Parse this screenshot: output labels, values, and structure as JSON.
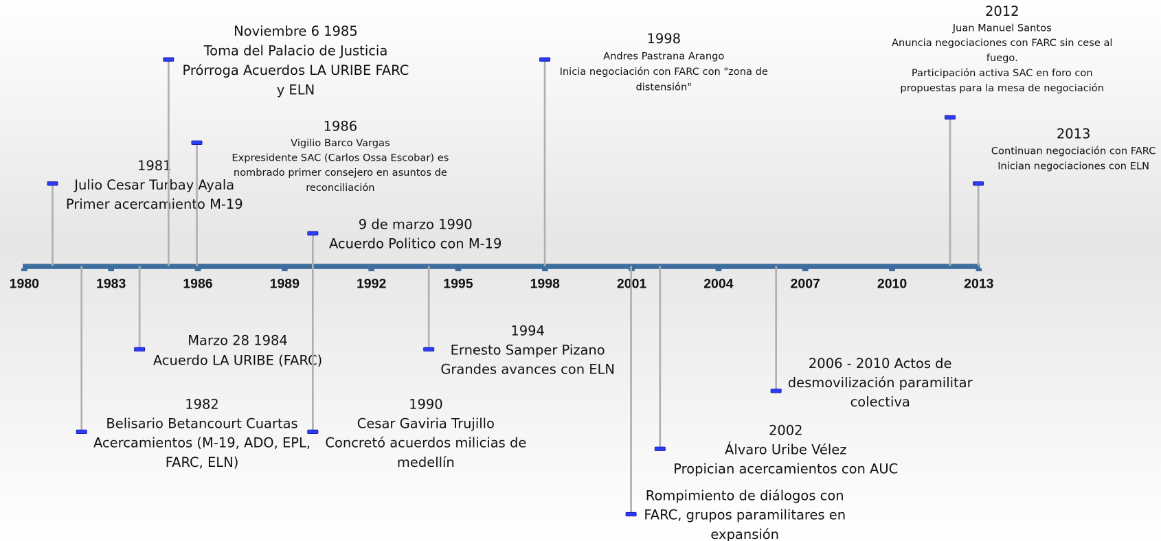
{
  "axis_labels": [
    "1980",
    "1983",
    "1986",
    "1989",
    "1992",
    "1995",
    "1998",
    "2001",
    "2004",
    "2007",
    "2010",
    "2013"
  ],
  "events": [
    {
      "lines": [
        "1981",
        "Julio Cesar Turbay Ayala",
        "Primer acercamiento M-19"
      ]
    },
    {
      "lines": [
        "1982",
        "Belisario Betancourt Cuartas",
        "Acercamientos (M-19, ADO, EPL,",
        "FARC, ELN)"
      ]
    },
    {
      "lines": [
        "Marzo 28 1984",
        "Acuerdo LA URIBE (FARC)"
      ]
    },
    {
      "lines": [
        "Noviembre 6 1985",
        "Toma del Palacio de Justicia",
        "Prórroga Acuerdos LA URIBE FARC",
        "y ELN"
      ]
    },
    {
      "lines": [
        "1986",
        "Vigilio Barco Vargas",
        "Expresidente SAC (Carlos Ossa Escobar)  es",
        "nombrado primer consejero en asuntos de",
        "reconciliación"
      ]
    },
    {
      "lines": [
        "9 de marzo 1990",
        "Acuerdo Politico con M-19"
      ]
    },
    {
      "lines": [
        "1990",
        "Cesar Gaviria Trujillo",
        "Concretó acuerdos milicias de",
        "medellín"
      ]
    },
    {
      "lines": [
        "1994",
        "Ernesto Samper Pizano",
        "Grandes avances con ELN"
      ]
    },
    {
      "lines": [
        "1998",
        "Andres Pastrana Arango",
        "Inicia negociación con FARC con  \"zona de",
        "distensión\""
      ]
    },
    {
      "lines": [
        "Rompimiento de diálogos con",
        "FARC, grupos paramilitares en",
        "expansión"
      ]
    },
    {
      "lines": [
        "2002",
        "Álvaro Uribe Vélez",
        "Propician acercamientos con AUC"
      ]
    },
    {
      "lines": [
        "2006 - 2010 Actos de",
        "desmovilización paramilitar",
        "colectiva"
      ]
    },
    {
      "lines": [
        "2012",
        "Juan Manuel Santos",
        "Anuncia negociaciones con FARC sin cese al",
        "fuego.",
        "Participación activa SAC en foro con",
        "propuestas para la mesa de negociación"
      ]
    },
    {
      "lines": [
        "2013",
        "Continuan negociación con FARC",
        "Inician negociaciones con ELN"
      ]
    }
  ]
}
